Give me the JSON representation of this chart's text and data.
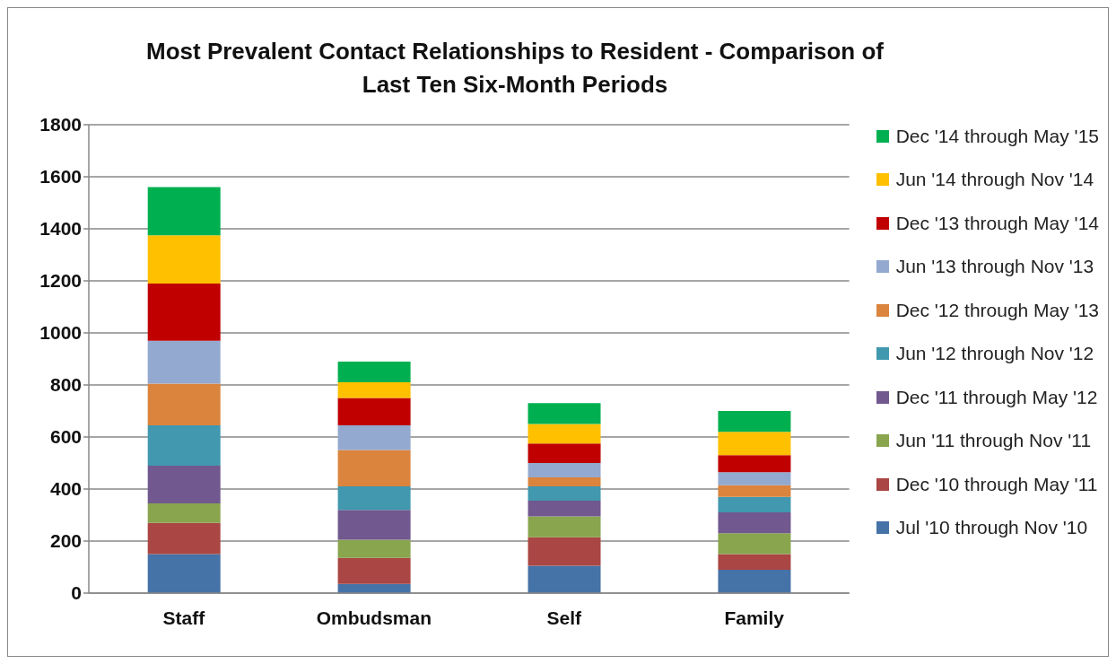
{
  "chart_data": {
    "type": "bar",
    "title": "Most Prevalent Contact Relationships to Resident - Comparison of Last Ten Six-Month Periods",
    "categories": [
      "Staff",
      "Ombudsman",
      "Self",
      "Family"
    ],
    "stacked": true,
    "ylim": [
      0,
      1800
    ],
    "yticks": [
      0,
      200,
      400,
      600,
      800,
      1000,
      1200,
      1400,
      1600,
      1800
    ],
    "grid": "y",
    "legend": "right",
    "series": [
      {
        "name": "Jul '10 through Nov '10",
        "color": "#4572a7",
        "values": [
          150,
          35,
          105,
          90
        ]
      },
      {
        "name": "Dec '10 through May '11",
        "color": "#aa4643",
        "values": [
          120,
          100,
          110,
          60
        ]
      },
      {
        "name": "Jun '11 through Nov '11",
        "color": "#89a54e",
        "values": [
          75,
          70,
          80,
          80
        ]
      },
      {
        "name": "Dec '11 through May '12",
        "color": "#71588f",
        "values": [
          145,
          115,
          60,
          80
        ]
      },
      {
        "name": "Jun '12 through Nov '12",
        "color": "#4198af",
        "values": [
          155,
          90,
          55,
          60
        ]
      },
      {
        "name": "Dec '12 through May '13",
        "color": "#db843d",
        "values": [
          160,
          140,
          35,
          45
        ]
      },
      {
        "name": "Jun '13 through Nov '13",
        "color": "#93a9cf",
        "values": [
          165,
          95,
          55,
          50
        ]
      },
      {
        "name": "Dec '13 through May '14",
        "color": "#c00000",
        "values": [
          220,
          105,
          75,
          65
        ]
      },
      {
        "name": "Jun '14 through Nov '14",
        "color": "#ffc000",
        "values": [
          185,
          60,
          75,
          90
        ]
      },
      {
        "name": "Dec '14 through May '15",
        "color": "#00b050",
        "values": [
          185,
          80,
          80,
          80
        ]
      }
    ]
  }
}
